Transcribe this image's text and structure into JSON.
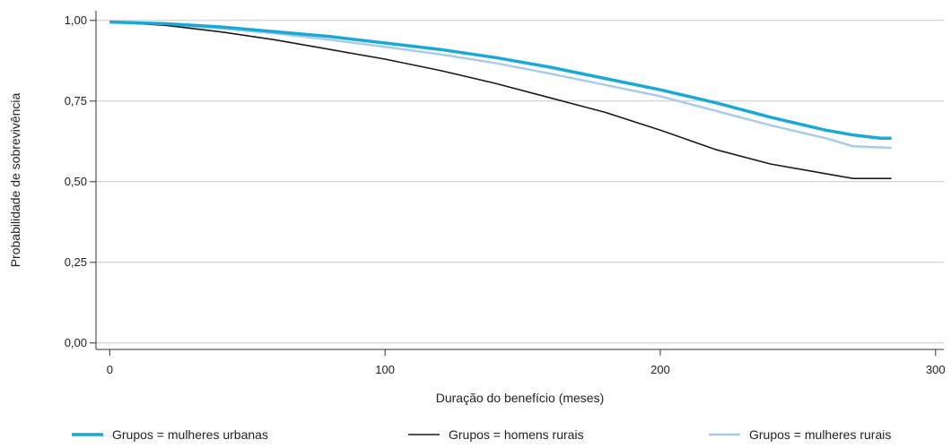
{
  "chart_data": {
    "type": "line",
    "title": "",
    "xlabel": "Duração do benefício (meses)",
    "ylabel": "Probabilidade de sobrevivência",
    "xlim": [
      -5,
      303
    ],
    "ylim": [
      -0.02,
      1.03
    ],
    "x_ticks": [
      0,
      100,
      200,
      300
    ],
    "x_tick_labels": [
      "0",
      "100",
      "200",
      "300"
    ],
    "y_ticks": [
      0.0,
      0.25,
      0.5,
      0.75,
      1.0
    ],
    "y_tick_labels": [
      "0,00",
      "0,25",
      "0,50",
      "0,75",
      "1,00"
    ],
    "grid": "horizontal",
    "legend_position": "bottom",
    "series": [
      {
        "name": "Grupos = mulheres urbanas",
        "color": "#1aa9d6",
        "style": "thick",
        "x": [
          0,
          20,
          40,
          60,
          80,
          100,
          120,
          140,
          160,
          180,
          200,
          220,
          240,
          260,
          270,
          280,
          284
        ],
        "y": [
          0.995,
          0.99,
          0.98,
          0.965,
          0.95,
          0.93,
          0.91,
          0.885,
          0.855,
          0.82,
          0.785,
          0.745,
          0.7,
          0.66,
          0.645,
          0.635,
          0.635
        ]
      },
      {
        "name": "Grupos = homens rurais",
        "color": "#1a1a1a",
        "style": "thin",
        "x": [
          0,
          20,
          40,
          60,
          80,
          100,
          120,
          140,
          160,
          180,
          200,
          220,
          240,
          260,
          270,
          284
        ],
        "y": [
          0.995,
          0.985,
          0.965,
          0.94,
          0.91,
          0.88,
          0.845,
          0.805,
          0.76,
          0.715,
          0.66,
          0.6,
          0.555,
          0.525,
          0.51,
          0.51
        ]
      },
      {
        "name": "Grupos = mulheres rurais",
        "color": "#a8cbe8",
        "style": "medium",
        "x": [
          0,
          20,
          40,
          60,
          80,
          100,
          120,
          140,
          160,
          180,
          200,
          220,
          240,
          260,
          270,
          284
        ],
        "y": [
          0.995,
          0.988,
          0.975,
          0.96,
          0.94,
          0.918,
          0.895,
          0.868,
          0.835,
          0.8,
          0.765,
          0.72,
          0.675,
          0.635,
          0.61,
          0.605
        ]
      }
    ]
  }
}
